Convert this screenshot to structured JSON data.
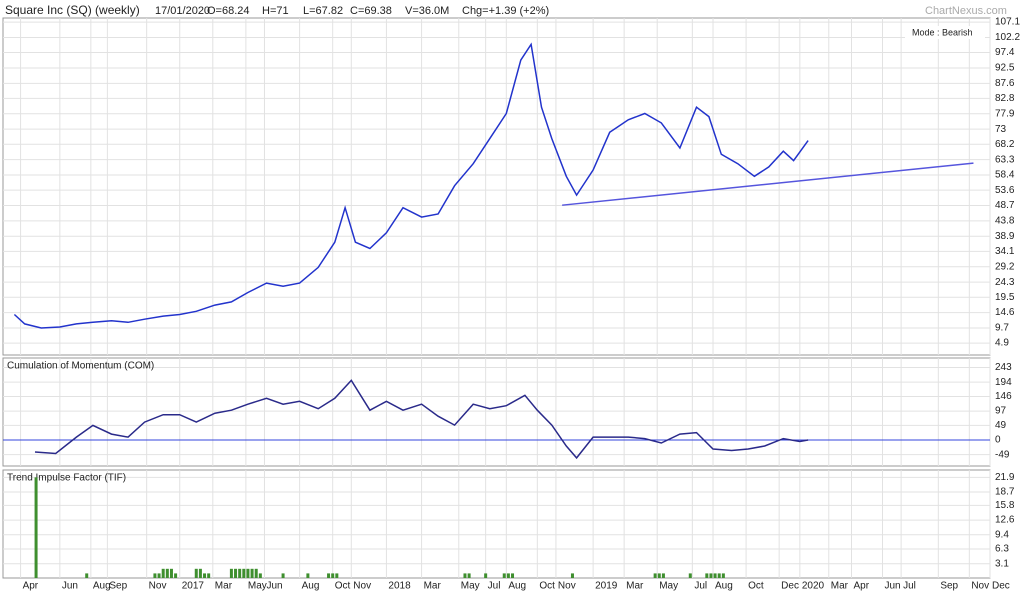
{
  "header": {
    "title": "Square Inc (SQ) (weekly)",
    "date": "17/01/2020",
    "open": "O=68.24",
    "high": "H=71",
    "low": "L=67.82",
    "close": "C=69.38",
    "volume": "V=36.0M",
    "change": "Chg=+1.39 (+2%)",
    "brand": "ChartNexus.com"
  },
  "chart_data": [
    {
      "type": "line",
      "annotation": "Mode : Bearish",
      "grid": true,
      "xlim": [
        2016.145,
        2020.92
      ],
      "xticks": [
        {
          "value": 2016.23,
          "label": "Apr"
        },
        {
          "value": 2016.42,
          "label": "Jun"
        },
        {
          "value": 2016.57,
          "label": "Aug"
        },
        {
          "value": 2016.65,
          "label": "Sep"
        },
        {
          "value": 2016.84,
          "label": "Nov"
        },
        2017,
        {
          "value": 2017.16,
          "label": "Mar"
        },
        {
          "value": 2017.32,
          "label": "May"
        },
        {
          "value": 2017.41,
          "label": "Jun"
        },
        {
          "value": 2017.58,
          "label": "Aug"
        },
        {
          "value": 2017.74,
          "label": "Oct"
        },
        {
          "value": 2017.83,
          "label": "Nov"
        },
        2018,
        {
          "value": 2018.17,
          "label": "Mar"
        },
        {
          "value": 2018.35,
          "label": "May"
        },
        {
          "value": 2018.48,
          "label": "Jul"
        },
        {
          "value": 2018.58,
          "label": "Aug"
        },
        {
          "value": 2018.73,
          "label": "Oct"
        },
        {
          "value": 2018.82,
          "label": "Nov"
        },
        2019,
        {
          "value": 2019.15,
          "label": "Mar"
        },
        {
          "value": 2019.31,
          "label": "May"
        },
        {
          "value": 2019.48,
          "label": "Jul"
        },
        {
          "value": 2019.58,
          "label": "Aug"
        },
        {
          "value": 2019.74,
          "label": "Oct"
        },
        {
          "value": 2019.9,
          "label": "Dec"
        },
        2020,
        {
          "value": 2020.14,
          "label": "Mar"
        },
        {
          "value": 2020.25,
          "label": "Apr"
        },
        {
          "value": 2020.4,
          "label": "Jun"
        },
        {
          "value": 2020.49,
          "label": "Jul"
        },
        {
          "value": 2020.67,
          "label": "Sep"
        },
        {
          "value": 2020.82,
          "label": "Nov"
        },
        {
          "value": 2020.92,
          "label": "Dec"
        }
      ],
      "ylim": [
        1.1,
        108.4
      ],
      "yticks": [
        4.9,
        9.7,
        14.6,
        19.5,
        24.3,
        29.2,
        34.1,
        38.9,
        43.8,
        48.7,
        53.6,
        58.4,
        63.3,
        68.2,
        73,
        77.9,
        82.8,
        87.6,
        92.5,
        97.4,
        102.2,
        107.1
      ],
      "x": [
        2016.2,
        2016.25,
        2016.33,
        2016.42,
        2016.5,
        2016.58,
        2016.67,
        2016.75,
        2016.83,
        2016.92,
        2017.0,
        2017.08,
        2017.17,
        2017.25,
        2017.33,
        2017.42,
        2017.5,
        2017.58,
        2017.67,
        2017.75,
        2017.8,
        2017.85,
        2017.92,
        2018.0,
        2018.08,
        2018.17,
        2018.25,
        2018.33,
        2018.42,
        2018.5,
        2018.58,
        2018.65,
        2018.7,
        2018.75,
        2018.8,
        2018.87,
        2018.92,
        2019.0,
        2019.08,
        2019.17,
        2019.25,
        2019.33,
        2019.42,
        2019.5,
        2019.56,
        2019.62,
        2019.7,
        2019.78,
        2019.85,
        2019.92,
        2019.97,
        2020.04
      ],
      "series": [
        {
          "color": "#2233cc",
          "values": [
            14,
            11,
            9.7,
            10,
            11,
            11.5,
            12,
            11.5,
            12.5,
            13.5,
            14,
            15,
            17,
            18,
            21,
            24,
            23,
            24,
            29,
            37,
            48,
            37,
            35,
            40,
            48,
            45,
            46,
            55,
            62,
            70,
            78,
            95,
            100,
            80,
            70,
            58,
            52,
            60,
            72,
            76,
            78,
            75,
            67,
            80,
            77,
            65,
            62,
            58,
            61,
            66,
            63,
            69.38
          ]
        }
      ],
      "trendline": {
        "color": "#5555dd",
        "x": [
          2018.85,
          2020.84
        ],
        "y": [
          48.8,
          62.2
        ]
      }
    },
    {
      "type": "line",
      "title": "Cumulation of Momentum (COM)",
      "grid": true,
      "ylim": [
        -87,
        275
      ],
      "yticks": [
        -49,
        0,
        49,
        97,
        146,
        194,
        243
      ],
      "hline": 0,
      "hline_color": "#3344dd",
      "x": [
        2016.3,
        2016.4,
        2016.5,
        2016.58,
        2016.67,
        2016.75,
        2016.83,
        2016.92,
        2017.0,
        2017.08,
        2017.17,
        2017.25,
        2017.33,
        2017.42,
        2017.5,
        2017.58,
        2017.67,
        2017.75,
        2017.83,
        2017.92,
        2018.0,
        2018.08,
        2018.17,
        2018.25,
        2018.33,
        2018.42,
        2018.5,
        2018.58,
        2018.67,
        2018.73,
        2018.8,
        2018.87,
        2018.92,
        2019.0,
        2019.08,
        2019.17,
        2019.25,
        2019.33,
        2019.42,
        2019.5,
        2019.58,
        2019.67,
        2019.75,
        2019.83,
        2019.92,
        2020.0,
        2020.04
      ],
      "series": [
        {
          "color": "#2a2a8a",
          "values": [
            -40,
            -45,
            10,
            49,
            20,
            10,
            60,
            85,
            85,
            60,
            90,
            100,
            120,
            140,
            120,
            130,
            105,
            140,
            200,
            100,
            130,
            100,
            120,
            80,
            50,
            120,
            105,
            115,
            150,
            100,
            50,
            -20,
            -60,
            10,
            10,
            10,
            5,
            -10,
            20,
            25,
            -30,
            -35,
            -30,
            -20,
            5,
            -5,
            0
          ]
        }
      ]
    },
    {
      "type": "bar",
      "title": "Trend Impulse Factor (TIF)",
      "grid": true,
      "ylim": [
        0,
        23.5
      ],
      "yticks": [
        3.1,
        6.3,
        9.4,
        12.6,
        15.8,
        18.7,
        21.9
      ],
      "x": [
        2016.305,
        2016.55,
        2016.88,
        2016.9,
        2016.92,
        2016.94,
        2016.96,
        2016.98,
        2017.08,
        2017.1,
        2017.12,
        2017.14,
        2017.25,
        2017.27,
        2017.29,
        2017.31,
        2017.33,
        2017.35,
        2017.37,
        2017.39,
        2017.5,
        2017.62,
        2017.72,
        2017.74,
        2017.76,
        2018.38,
        2018.4,
        2018.48,
        2018.57,
        2018.59,
        2018.61,
        2018.9,
        2019.3,
        2019.32,
        2019.34,
        2019.47,
        2019.55,
        2019.57,
        2019.59,
        2019.61,
        2019.63
      ],
      "series": [
        {
          "color": "#3f8f2f",
          "values": [
            21.9,
            1,
            1,
            1,
            2,
            2,
            2,
            1,
            2,
            2,
            1,
            1,
            2,
            2,
            2,
            2,
            2,
            2,
            2,
            1,
            1,
            1,
            1,
            1,
            1,
            1,
            1,
            1,
            1,
            1,
            1,
            1,
            1,
            1,
            1,
            1,
            1,
            1,
            1,
            1,
            1
          ]
        }
      ]
    }
  ]
}
